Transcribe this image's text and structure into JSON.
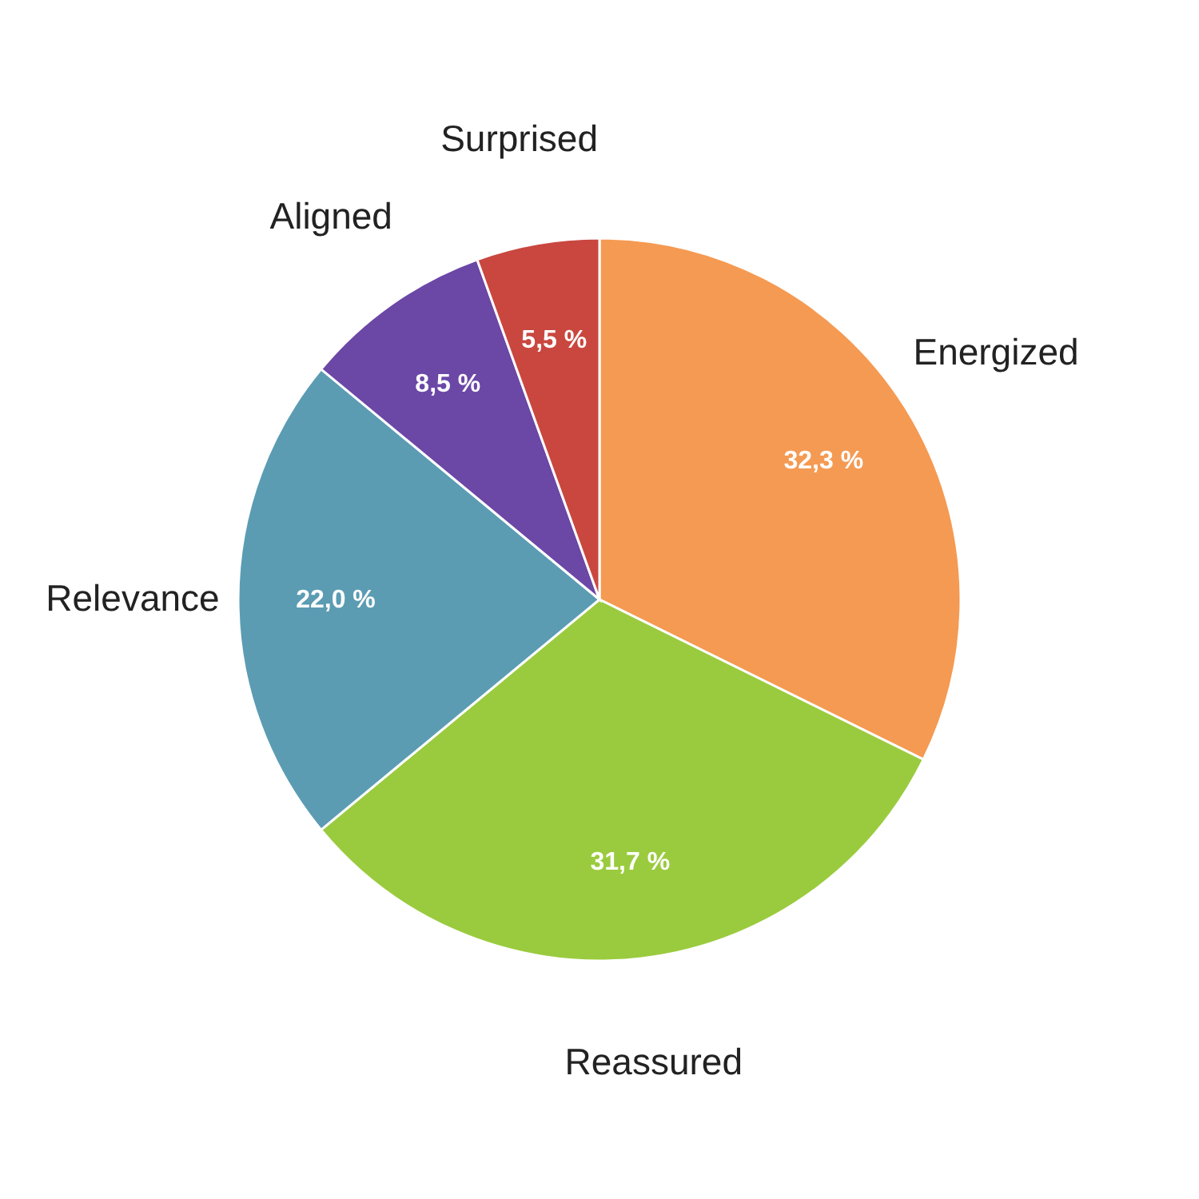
{
  "chart_data": {
    "type": "pie",
    "categories": [
      "Energized",
      "Reassured",
      "Relevance",
      "Aligned",
      "Surprised"
    ],
    "values": [
      32.3,
      31.7,
      22.0,
      8.5,
      5.5
    ],
    "colors": [
      "#f59a52",
      "#9acb3e",
      "#5b9cb3",
      "#6b47a6",
      "#c9473f"
    ],
    "value_labels": [
      "32,3 %",
      "31,7 %",
      "22,0 %",
      "8,5 %",
      "5,5 %"
    ]
  }
}
